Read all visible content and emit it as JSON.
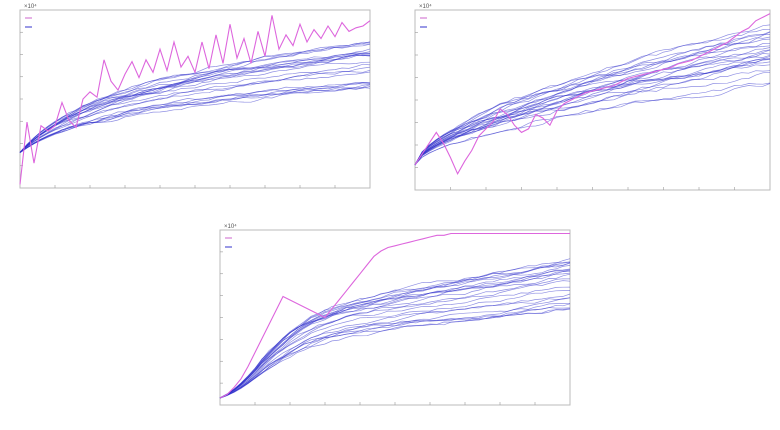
{
  "page": {
    "background": "#ffffff"
  },
  "charts": {
    "exponent_label": "×10⁴"
  },
  "chart_data": [
    {
      "type": "line",
      "title": "",
      "xlabel": "",
      "ylabel": "",
      "xlim": [
        0,
        50
      ],
      "ylim": [
        0,
        1
      ],
      "grid": false,
      "legend": {
        "position": "top-left",
        "entries": [
          "",
          ""
        ],
        "colors": [
          "#cc66cc",
          "#3333cc"
        ]
      },
      "highlight_series": {
        "color": "#dd66dd",
        "values": [
          0.02,
          0.37,
          0.14,
          0.35,
          0.32,
          0.35,
          0.48,
          0.38,
          0.34,
          0.5,
          0.54,
          0.51,
          0.72,
          0.6,
          0.55,
          0.64,
          0.71,
          0.62,
          0.72,
          0.65,
          0.78,
          0.66,
          0.82,
          0.68,
          0.74,
          0.65,
          0.82,
          0.67,
          0.86,
          0.7,
          0.92,
          0.73,
          0.84,
          0.7,
          0.88,
          0.74,
          0.97,
          0.78,
          0.86,
          0.8,
          0.92,
          0.82,
          0.89,
          0.84,
          0.91,
          0.85,
          0.93,
          0.88,
          0.9,
          0.91,
          0.94
        ]
      },
      "ensemble": {
        "color": "#3333cc",
        "count": 24,
        "start": 0.2,
        "shape": "log",
        "end_min": 0.55,
        "end_max": 0.82,
        "rise": 0.34,
        "noise": 0.02
      },
      "x_ticks": 10,
      "y_ticks": 8
    },
    {
      "type": "line",
      "title": "",
      "xlabel": "",
      "ylabel": "",
      "xlim": [
        0,
        50
      ],
      "ylim": [
        0,
        1
      ],
      "grid": false,
      "legend": {
        "position": "top-left",
        "entries": [
          "",
          ""
        ],
        "colors": [
          "#cc66cc",
          "#3333cc"
        ]
      },
      "highlight_series": {
        "color": "#dd66dd",
        "values": [
          0.14,
          0.2,
          0.26,
          0.32,
          0.26,
          0.18,
          0.09,
          0.16,
          0.22,
          0.3,
          0.34,
          0.38,
          0.45,
          0.42,
          0.36,
          0.32,
          0.34,
          0.42,
          0.4,
          0.36,
          0.44,
          0.48,
          0.5,
          0.52,
          0.54,
          0.55,
          0.56,
          0.57,
          0.58,
          0.6,
          0.62,
          0.63,
          0.64,
          0.65,
          0.66,
          0.67,
          0.68,
          0.7,
          0.71,
          0.72,
          0.74,
          0.76,
          0.78,
          0.8,
          0.82,
          0.85,
          0.88,
          0.9,
          0.94,
          0.96,
          0.98
        ]
      },
      "ensemble": {
        "color": "#3333cc",
        "count": 24,
        "start": 0.14,
        "shape": "sqrt",
        "end_min": 0.58,
        "end_max": 0.92,
        "rise": 0.16,
        "noise": 0.025
      },
      "x_ticks": 10,
      "y_ticks": 8
    },
    {
      "type": "line",
      "title": "",
      "xlabel": "",
      "ylabel": "",
      "xlim": [
        0,
        50
      ],
      "ylim": [
        0,
        1
      ],
      "grid": false,
      "legend": {
        "position": "top-left",
        "entries": [
          "",
          ""
        ],
        "colors": [
          "#cc66cc",
          "#3333cc"
        ]
      },
      "highlight_series": {
        "color": "#dd66dd",
        "values": [
          0.04,
          0.06,
          0.1,
          0.15,
          0.22,
          0.3,
          0.38,
          0.46,
          0.54,
          0.62,
          0.6,
          0.58,
          0.56,
          0.54,
          0.52,
          0.5,
          0.55,
          0.6,
          0.65,
          0.7,
          0.75,
          0.8,
          0.85,
          0.88,
          0.9,
          0.91,
          0.92,
          0.93,
          0.94,
          0.95,
          0.96,
          0.97,
          0.97,
          0.98,
          0.98,
          0.98,
          0.98,
          0.98,
          0.98,
          0.98,
          0.98,
          0.98,
          0.98,
          0.98,
          0.98,
          0.98,
          0.98,
          0.98,
          0.98,
          0.98,
          0.98
        ]
      },
      "ensemble": {
        "color": "#3333cc",
        "count": 24,
        "start": 0.04,
        "shape": "sigmoid-log",
        "end_min": 0.55,
        "end_max": 0.85,
        "rise": 0.22,
        "noise": 0.02
      },
      "x_ticks": 10,
      "y_ticks": 8
    }
  ]
}
